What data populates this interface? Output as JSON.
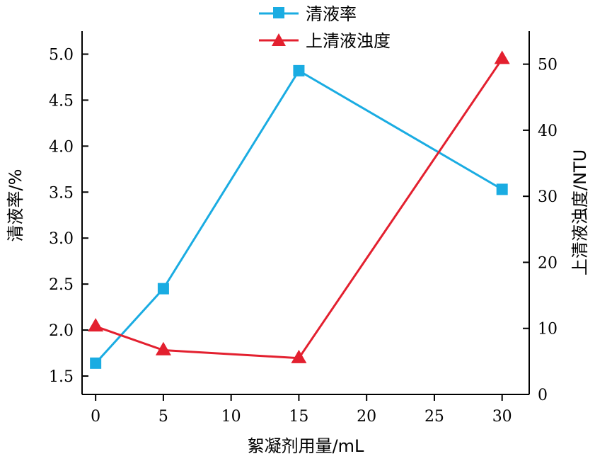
{
  "chart_data": {
    "type": "line",
    "title": "",
    "x": [
      0,
      5,
      15,
      30
    ],
    "xlabel": "絮凝剂用量/mL",
    "xlim": [
      -1,
      32
    ],
    "xticks": [
      0,
      5,
      10,
      15,
      20,
      25,
      30
    ],
    "xtick_labels": [
      "0",
      "5",
      "10",
      "15",
      "20",
      "25",
      "30"
    ],
    "y_left": {
      "label": "清液率/%",
      "lim": [
        1.3,
        5.25
      ],
      "ticks": [
        1.5,
        2.0,
        2.5,
        3.0,
        3.5,
        4.0,
        4.5,
        5.0
      ],
      "tick_labels": [
        "1.5",
        "2.0",
        "2.5",
        "3.0",
        "3.5",
        "4.0",
        "4.5",
        "5.0"
      ]
    },
    "y_right": {
      "label": "上清液浊度/NTU",
      "lim": [
        0,
        55
      ],
      "ticks": [
        0,
        10,
        20,
        30,
        40,
        50
      ],
      "tick_labels": [
        "0",
        "10",
        "20",
        "30",
        "40",
        "50"
      ]
    },
    "series": [
      {
        "name": "清液率",
        "axis": "left",
        "values": [
          1.64,
          2.45,
          4.82,
          3.53
        ],
        "color": "#1aace2",
        "marker": "square"
      },
      {
        "name": "上清液浊度",
        "axis": "right",
        "values": [
          10.3,
          6.7,
          5.5,
          50.8
        ],
        "color": "#e3202f",
        "marker": "triangle"
      }
    ],
    "legend": {
      "placement": "top-center"
    },
    "grid": false
  }
}
